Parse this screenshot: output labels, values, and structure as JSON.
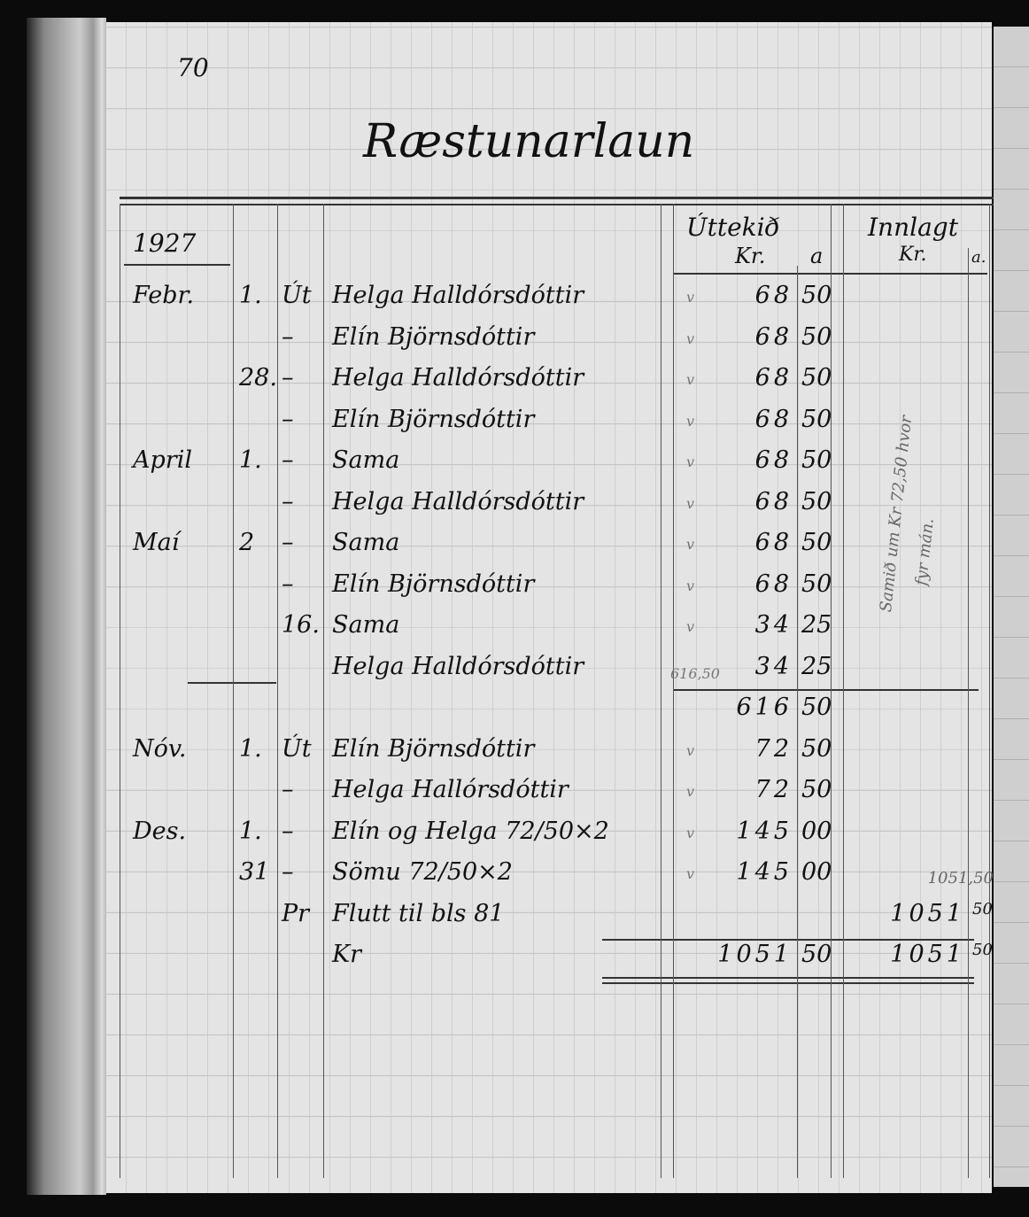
{
  "page_number": "70",
  "title": "Ræstunarlaun",
  "header": {
    "year": "1927",
    "out_label": "Úttekið",
    "in_label": "Innlagt",
    "kr_label": "Kr.",
    "aur_label": "a",
    "in_kr_label": "Kr.",
    "in_aur_label": "a."
  },
  "rows": [
    {
      "month": "Febr.",
      "day": "1.",
      "type": "Út",
      "name": "Helga Halldórsdóttir",
      "check": "v",
      "kr": "68",
      "aur": "50",
      "in_kr": "",
      "in_aur": ""
    },
    {
      "month": "",
      "day": "",
      "type": "–",
      "name": "Elín Björnsdóttir",
      "check": "v",
      "kr": "68",
      "aur": "50",
      "in_kr": "",
      "in_aur": ""
    },
    {
      "month": "",
      "day": "28.",
      "type": "–",
      "name": "Helga Halldórsdóttir",
      "check": "v",
      "kr": "68",
      "aur": "50",
      "in_kr": "",
      "in_aur": ""
    },
    {
      "month": "",
      "day": "",
      "type": "–",
      "name": "Elín Björnsdóttir",
      "check": "v",
      "kr": "68",
      "aur": "50",
      "in_kr": "",
      "in_aur": ""
    },
    {
      "month": "April",
      "day": "1.",
      "type": "–",
      "name": "Sama",
      "check": "v",
      "kr": "68",
      "aur": "50",
      "in_kr": "",
      "in_aur": ""
    },
    {
      "month": "",
      "day": "",
      "type": "–",
      "name": "Helga Halldórsdóttir",
      "check": "v",
      "kr": "68",
      "aur": "50",
      "in_kr": "",
      "in_aur": ""
    },
    {
      "month": "Maí",
      "day": "2",
      "type": "–",
      "name": "Sama",
      "check": "v",
      "kr": "68",
      "aur": "50",
      "in_kr": "",
      "in_aur": ""
    },
    {
      "month": "",
      "day": "",
      "type": "–",
      "name": "Elín Björnsdóttir",
      "check": "v",
      "kr": "68",
      "aur": "50",
      "in_kr": "",
      "in_aur": ""
    },
    {
      "month": "",
      "day": "",
      "type": "16.",
      "name": "Sama",
      "check": "v",
      "kr": "34",
      "aur": "25",
      "in_kr": "",
      "in_aur": ""
    },
    {
      "month": "",
      "day": "",
      "type": "",
      "name": "Helga Halldórsdóttir",
      "check": "616,50",
      "kr": "34",
      "aur": "25",
      "in_kr": "",
      "in_aur": ""
    },
    {
      "month": "",
      "day": "",
      "type": "",
      "name": "",
      "check": "",
      "kr": "616",
      "aur": "50",
      "in_kr": "",
      "in_aur": ""
    },
    {
      "month": "Nóv.",
      "day": "1.",
      "type": "Út",
      "name": "Elín Björnsdóttir",
      "check": "v",
      "kr": "72",
      "aur": "50",
      "in_kr": "",
      "in_aur": ""
    },
    {
      "month": "",
      "day": "",
      "type": "–",
      "name": "Helga Hallórsdóttir",
      "check": "v",
      "kr": "72",
      "aur": "50",
      "in_kr": "",
      "in_aur": ""
    },
    {
      "month": "Des.",
      "day": "1.",
      "type": "–",
      "name": "Elín og Helga   72/50×2",
      "check": "v",
      "kr": "145",
      "aur": "00",
      "in_kr": "",
      "in_aur": ""
    },
    {
      "month": "",
      "day": "31",
      "type": "–",
      "name": "Sömu              72/50×2",
      "check": "v",
      "kr": "145",
      "aur": "00",
      "in_kr": "1051,50",
      "in_aur": ""
    },
    {
      "month": "",
      "day": "",
      "type": "Pr",
      "name": "          Flutt til bls 81",
      "check": "",
      "kr": "",
      "aur": "",
      "in_kr": "1051",
      "in_aur": "50"
    },
    {
      "month": "",
      "day": "",
      "type": "",
      "name": "                              Kr",
      "check": "",
      "kr": "1051",
      "aur": "50",
      "in_kr": "1051",
      "in_aur": "50"
    }
  ],
  "margin_note": "Samið um Kr 72,50 hvor",
  "margin_note_2": "fyr mán."
}
